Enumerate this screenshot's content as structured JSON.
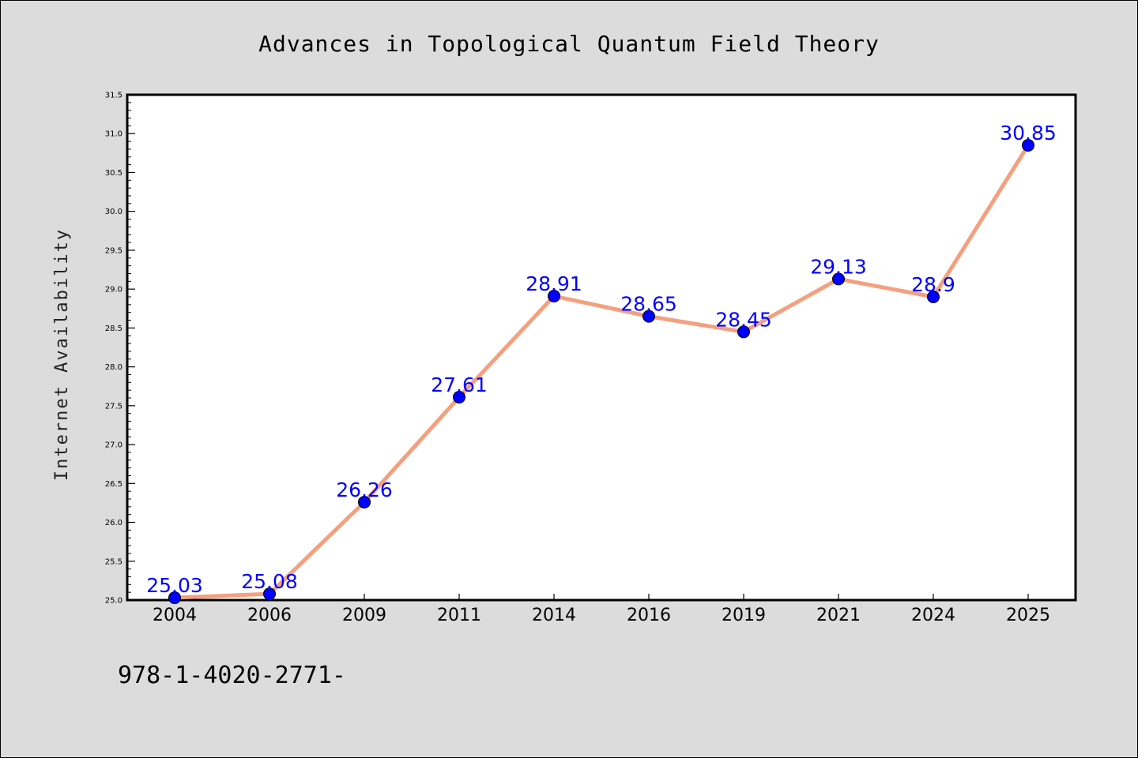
{
  "chart_data": {
    "type": "line",
    "title": "Advances in Topological Quantum Field Theory",
    "xlabel": "",
    "ylabel": "Internet Availability",
    "categories": [
      "2004",
      "2006",
      "2009",
      "2011",
      "2014",
      "2016",
      "2019",
      "2021",
      "2024",
      "2025"
    ],
    "values": [
      25.03,
      25.08,
      26.26,
      27.61,
      28.91,
      28.65,
      28.45,
      29.13,
      28.9,
      30.85
    ],
    "data_labels": [
      "25.03",
      "25.08",
      "26.26",
      "27.61",
      "28.91",
      "28.65",
      "28.45",
      "29.13",
      "28.9",
      "30.85"
    ],
    "ylim": [
      25.0,
      31.5
    ],
    "yticks": [
      "25.0",
      "25.5",
      "26.0",
      "26.5",
      "27.0",
      "27.5",
      "28.0",
      "28.5",
      "29.0",
      "29.5",
      "30.0",
      "30.5",
      "31.0",
      "31.5"
    ],
    "grid": false,
    "line_color": "#f4a07e",
    "marker_color": "#0000ff",
    "label_color": "#0000ff"
  },
  "footer": {
    "isbn": "978-1-4020-2771-"
  }
}
